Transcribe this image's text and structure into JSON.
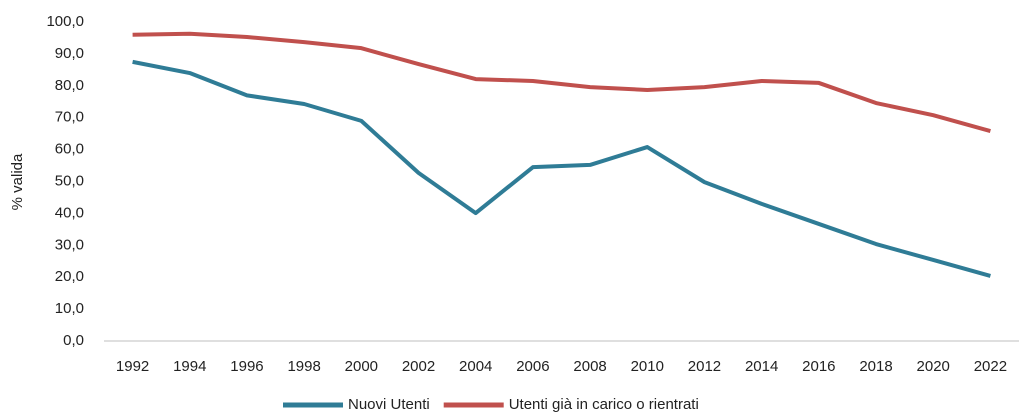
{
  "chart_data": {
    "type": "line",
    "y_label": "% valida",
    "categories": [
      "1992",
      "1994",
      "1996",
      "1998",
      "2000",
      "2002",
      "2004",
      "2006",
      "2008",
      "2010",
      "2012",
      "2014",
      "2016",
      "2018",
      "2020",
      "2022"
    ],
    "series": [
      {
        "name": "Nuovi Utenti",
        "color": "#2f7c96",
        "values": [
          87.5,
          84.0,
          77.0,
          74.3,
          69.0,
          52.7,
          40.1,
          54.5,
          55.2,
          60.8,
          49.8,
          43.0,
          36.7,
          30.4,
          25.4,
          20.4
        ]
      },
      {
        "name": "Utenti già in carico o rientrati",
        "color": "#c0504d",
        "values": [
          96.0,
          96.3,
          95.3,
          93.7,
          91.8,
          86.8,
          82.1,
          81.5,
          79.6,
          78.7,
          79.6,
          81.5,
          80.9,
          74.6,
          70.8,
          65.8
        ]
      }
    ],
    "ylim": [
      0,
      100
    ],
    "yticks": [
      {
        "value": 0,
        "label": "0,0"
      },
      {
        "value": 10,
        "label": "10,0"
      },
      {
        "value": 20,
        "label": "20,0"
      },
      {
        "value": 30,
        "label": "30,0"
      },
      {
        "value": 40,
        "label": "40,0"
      },
      {
        "value": 50,
        "label": "50,0"
      },
      {
        "value": 60,
        "label": "60,0"
      },
      {
        "value": 70,
        "label": "70,0"
      },
      {
        "value": 80,
        "label": "80,0"
      },
      {
        "value": 90,
        "label": "90,0"
      },
      {
        "value": 100,
        "label": "100,0"
      }
    ],
    "grid": false,
    "legend": "bottom"
  }
}
